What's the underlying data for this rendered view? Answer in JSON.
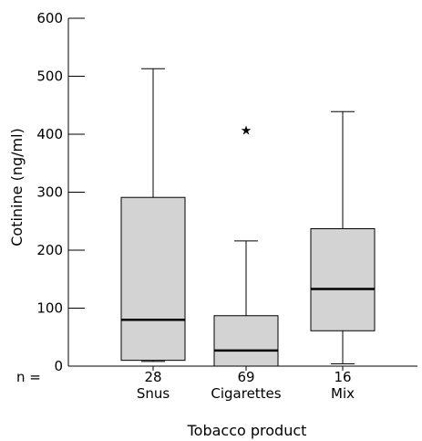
{
  "chart_data": {
    "type": "box",
    "title": "",
    "xlabel": "Tobacco product",
    "ylabel": "Cotinine (ng/ml)",
    "ylim": [
      0,
      600
    ],
    "yticks": [
      0,
      100,
      200,
      300,
      400,
      500,
      600
    ],
    "grid": false,
    "n_prefix": "n =",
    "categories": [
      {
        "name": "Snus",
        "n": "28",
        "min": 8,
        "q1": 10,
        "median": 80,
        "q3": 291,
        "max": 513,
        "outliers": []
      },
      {
        "name": "Cigarettes",
        "n": "69",
        "min": 0,
        "q1": 0,
        "median": 27,
        "q3": 87,
        "max": 216,
        "outliers": [
          409
        ]
      },
      {
        "name": "Mix",
        "n": "16",
        "min": 4,
        "q1": 61,
        "median": 133,
        "q3": 237,
        "max": 439,
        "outliers": []
      }
    ],
    "colors": {
      "box_fill": "#d3d3d3",
      "stroke": "#000000",
      "background": "#ffffff"
    }
  }
}
